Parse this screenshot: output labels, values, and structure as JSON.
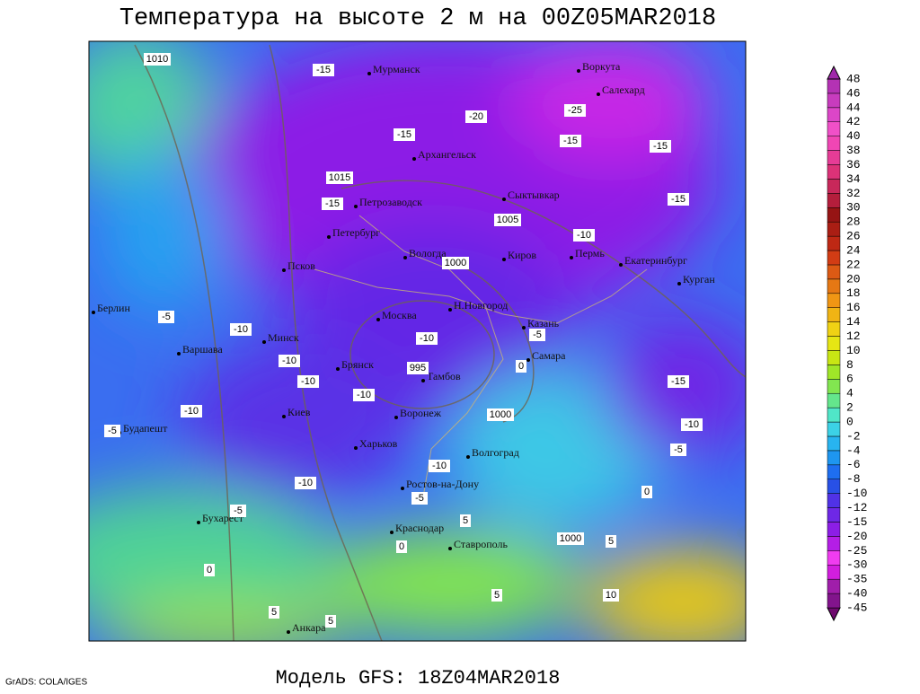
{
  "header": {
    "title": "Температура на высоте 2 м на 00Z05MAR2018"
  },
  "footer": {
    "model": "Модель GFS: 18Z04MAR2018",
    "credit": "GrADS: COLA/IGES"
  },
  "colorbar": {
    "levels": [
      -45,
      -40,
      -35,
      -30,
      -25,
      -20,
      -15,
      -12,
      -10,
      -8,
      -6,
      -4,
      -2,
      0,
      2,
      4,
      6,
      8,
      10,
      12,
      14,
      16,
      18,
      20,
      22,
      24,
      26,
      28,
      30,
      32,
      34,
      36,
      38,
      40,
      42,
      44,
      46,
      48
    ],
    "colors": [
      "#6e0a6e",
      "#82148c",
      "#a01eaa",
      "#d21ede",
      "#f03cf0",
      "#b41ee6",
      "#8c1ee6",
      "#6e28e6",
      "#5032e6",
      "#2850e6",
      "#1e6ef0",
      "#1e96f0",
      "#28b4f0",
      "#3cd2e6",
      "#50e6c8",
      "#64e68c",
      "#82e650",
      "#a0e628",
      "#c8e614",
      "#e6e614",
      "#f0d214",
      "#f0b414",
      "#f09614",
      "#e67814",
      "#dc5a14",
      "#d23c14",
      "#be2814",
      "#aa1e14",
      "#961414",
      "#b41e3c",
      "#c8285a",
      "#dc3278",
      "#e63c96",
      "#f046b4",
      "#f050c8",
      "#dc46c8",
      "#c83cbe",
      "#b432b4",
      "#a028aa"
    ]
  },
  "cities": [
    "Мурманск",
    "Воркута",
    "Салехард",
    "Архангельск",
    "Сыктывкар",
    "Петрозаводск",
    "Петербург",
    "Вологда",
    "Киров",
    "Пермь",
    "Екатеринбург",
    "Курган",
    "Псков",
    "Н.Новгород",
    "Казань",
    "Москва",
    "Минск",
    "Берлин",
    "Варшава",
    "Самара",
    "Брянск",
    "Тамбов",
    "Воронеж",
    "Киев",
    "Будапешт",
    "Харьков",
    "Волгоград",
    "Ростов-на-Дону",
    "Бухарест",
    "Краснодар",
    "Ставрополь",
    "Анкара"
  ],
  "contour_labels": [
    1010,
    -15,
    -25,
    -20,
    -15,
    -15,
    -15,
    1015,
    -15,
    1005,
    -10,
    1000,
    -15,
    -5,
    -10,
    -10,
    995,
    -10,
    -10,
    -10,
    -5,
    1000,
    -15,
    -10,
    -10,
    -5,
    -5,
    -10,
    -10,
    -5,
    -5,
    0,
    1000,
    5,
    5,
    0,
    5,
    10,
    5,
    5,
    0,
    0
  ]
}
